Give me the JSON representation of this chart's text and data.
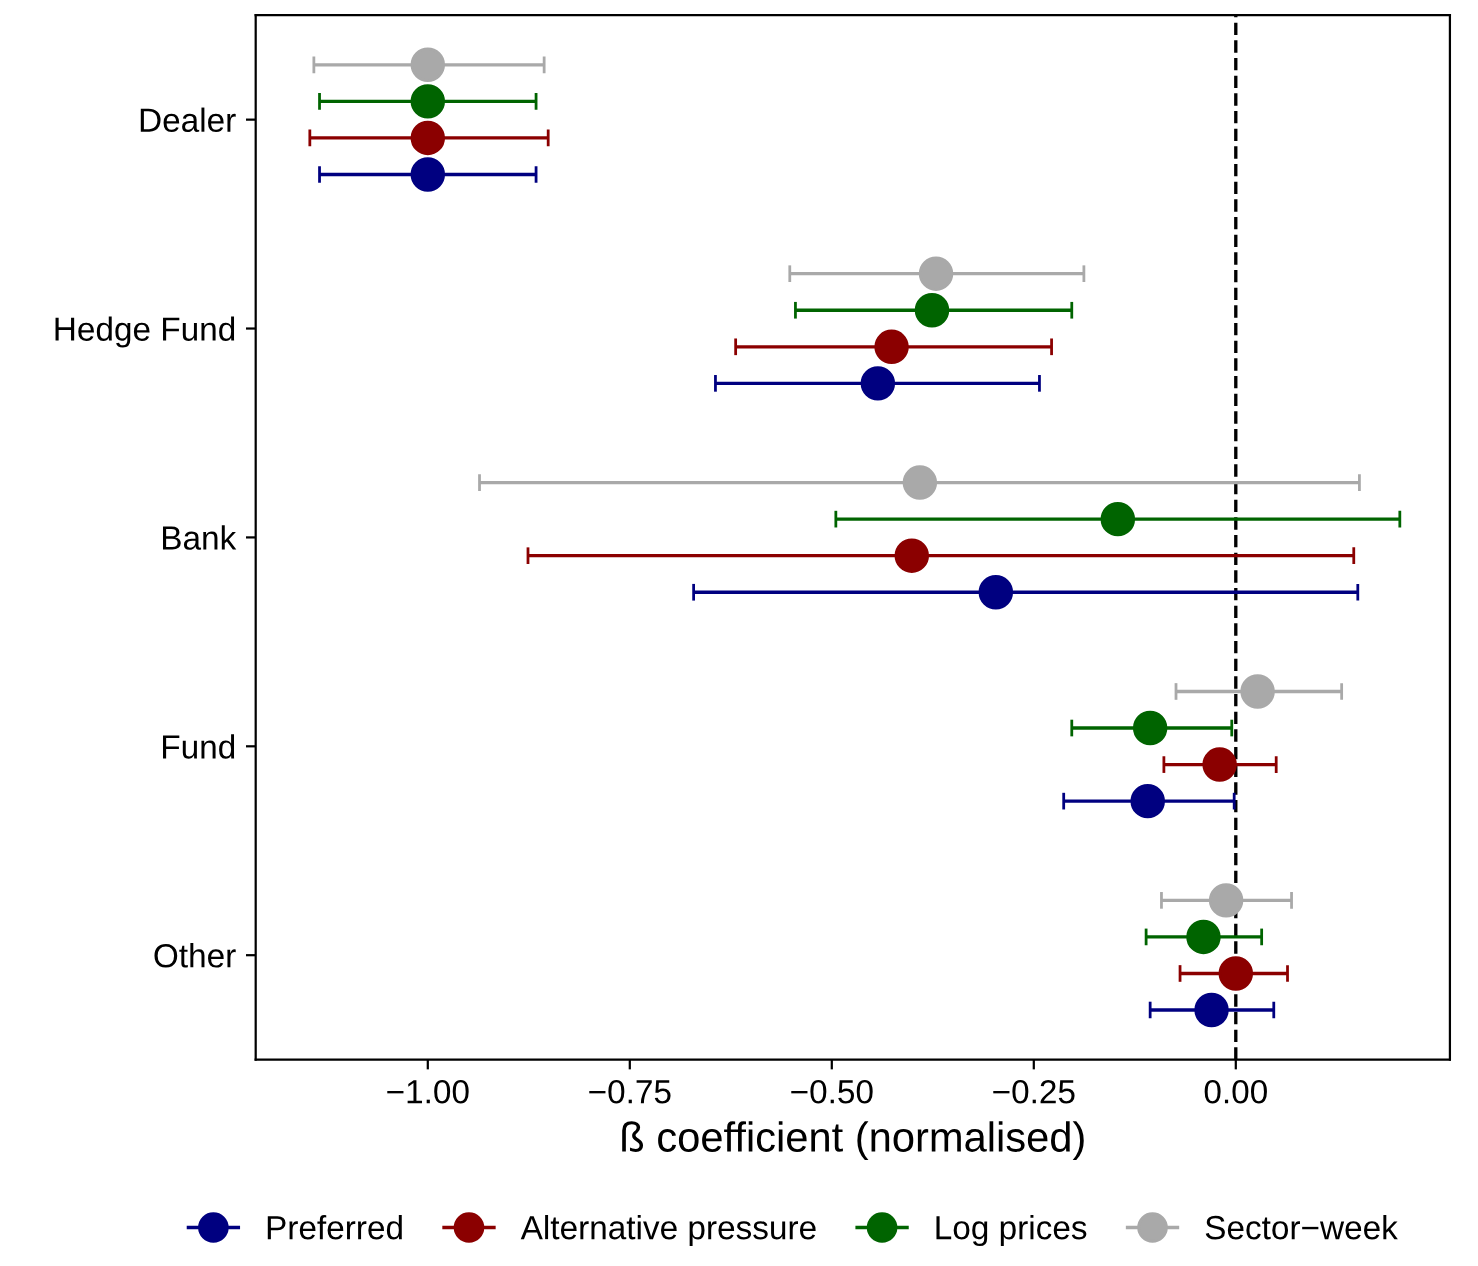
{
  "chart_data": {
    "type": "scatter",
    "orientation": "horizontal",
    "xlabel": "ß coefficient (normalised)",
    "categories": [
      "Dealer",
      "Hedge Fund",
      "Bank",
      "Fund",
      "Other"
    ],
    "xlim": [
      -1.213,
      0.265
    ],
    "xticks": [
      {
        "value": -1,
        "label": "−1.00"
      },
      {
        "value": -0.75,
        "label": "−0.75"
      },
      {
        "value": -0.5,
        "label": "−0.50"
      },
      {
        "value": -0.25,
        "label": "−0.25"
      },
      {
        "value": 0,
        "label": "0.00"
      }
    ],
    "grid": false,
    "legend": "bottom",
    "marker": "circle",
    "ref_lines": [
      {
        "axis": "x",
        "value": 0,
        "color": "#000000",
        "line_style": "dashed"
      }
    ],
    "series": [
      {
        "name": "Preferred",
        "color": "#000080",
        "values": [
          -1.0,
          -0.443,
          -0.297,
          -0.109,
          -0.03
        ],
        "errors": [
          [
            -1.134,
            -0.866
          ],
          [
            -0.644,
            -0.243
          ],
          [
            -0.671,
            0.151
          ],
          [
            -0.213,
            -0.002
          ],
          [
            -0.106,
            0.047
          ]
        ]
      },
      {
        "name": "Alternative pressure",
        "color": "#8b0000",
        "values": [
          -1.0,
          -0.426,
          -0.401,
          -0.02,
          0.0
        ],
        "errors": [
          [
            -1.146,
            -0.851
          ],
          [
            -0.619,
            -0.228
          ],
          [
            -0.876,
            0.146
          ],
          [
            -0.089,
            0.05
          ],
          [
            -0.069,
            0.064
          ]
        ]
      },
      {
        "name": "Log prices",
        "color": "#006400",
        "values": [
          -1.0,
          -0.376,
          -0.146,
          -0.106,
          -0.04
        ],
        "errors": [
          [
            -1.134,
            -0.866
          ],
          [
            -0.545,
            -0.203
          ],
          [
            -0.495,
            0.203
          ],
          [
            -0.203,
            -0.005
          ],
          [
            -0.111,
            0.032
          ]
        ]
      },
      {
        "name": "Sector−week",
        "color": "#a9a9a9",
        "values": [
          -1.0,
          -0.371,
          -0.391,
          0.027,
          -0.012
        ],
        "errors": [
          [
            -1.141,
            -0.856
          ],
          [
            -0.552,
            -0.188
          ],
          [
            -0.936,
            0.153
          ],
          [
            -0.074,
            0.131
          ],
          [
            -0.092,
            0.069
          ]
        ]
      }
    ]
  }
}
